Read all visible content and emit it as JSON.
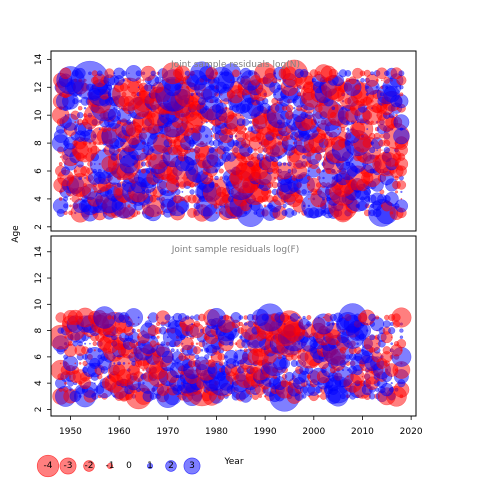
{
  "chart_data": [
    {
      "type": "scatter",
      "subtype": "bubble-residuals",
      "title": "Joint sample residuals log(N)",
      "xlabel": "Year",
      "ylabel": "Age",
      "xlim": [
        1946,
        2021
      ],
      "ylim": [
        1.7,
        14.6
      ],
      "xticks": [
        1950,
        1960,
        1970,
        1980,
        1990,
        2000,
        2010,
        2020
      ],
      "yticks": [
        2,
        4,
        6,
        8,
        10,
        12,
        14
      ],
      "x_range": [
        1948,
        2018
      ],
      "y_range": [
        3,
        13
      ],
      "y_step": 0.5,
      "residual_sd": 1.0,
      "seed": 17,
      "note": "dense yearly grid of residual bubbles; marker size proportional to |residual|"
    },
    {
      "type": "scatter",
      "subtype": "bubble-residuals",
      "title": "Joint sample residuals log(F)",
      "xlabel": "Year",
      "ylabel": "Age",
      "xlim": [
        1946,
        2021
      ],
      "ylim": [
        1.5,
        15.2
      ],
      "xticks": [
        1950,
        1960,
        1970,
        1980,
        1990,
        2000,
        2010,
        2020
      ],
      "yticks": [
        2,
        4,
        6,
        8,
        10,
        12,
        14
      ],
      "x_range": [
        1948,
        2018
      ],
      "y_range": [
        3,
        9
      ],
      "y_step": 0.5,
      "residual_sd": 1.0,
      "seed": 91,
      "note": "dense yearly grid of residual bubbles; marker size proportional to |residual|"
    }
  ],
  "axes": {
    "shared_xlabel": "Year",
    "shared_ylabel": "Age",
    "xtick_labels": [
      "1950",
      "1960",
      "1970",
      "1980",
      "1990",
      "2000",
      "2010",
      "2020"
    ]
  },
  "legend": {
    "items": [
      {
        "label": "-4",
        "value": -4
      },
      {
        "label": "-3",
        "value": -3
      },
      {
        "label": "-2",
        "value": -2
      },
      {
        "label": "-1",
        "value": -1
      },
      {
        "label": "0",
        "value": 0
      },
      {
        "label": "1",
        "value": 1
      },
      {
        "label": "2",
        "value": 2
      },
      {
        "label": "3",
        "value": 3
      }
    ]
  },
  "colors": {
    "negative": "#ff0000",
    "positive": "#0000ff",
    "fill_opacity": 0.5,
    "title_color": "#808080",
    "frame": "#000000"
  }
}
